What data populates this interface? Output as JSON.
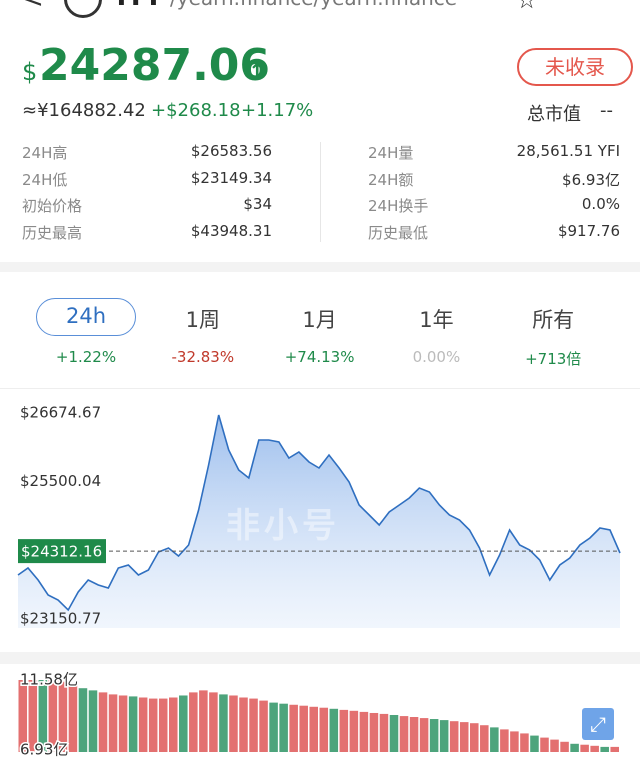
{
  "header": {
    "back": "<",
    "symbol": "YFI",
    "path": "/yearn.finance/yearn.finance"
  },
  "price": {
    "currency": "$",
    "value": "24287.06",
    "arrow": "↑",
    "badge": "未收录"
  },
  "sub": {
    "cny": "≈¥164882.42",
    "change": "+$268.18",
    "percent": "+1.17%",
    "cap_label": "总市值",
    "cap_value": "--"
  },
  "stats": {
    "left": [
      [
        "24H高",
        "$26583.56"
      ],
      [
        "24H低",
        "$23149.34"
      ],
      [
        "初始价格",
        "$34"
      ],
      [
        "历史最高",
        "$43948.31"
      ]
    ],
    "right": [
      [
        "24H量",
        "28,561.51 YFI"
      ],
      [
        "24H额",
        "$6.93亿"
      ],
      [
        "24H换手",
        "0.0%"
      ],
      [
        "历史最低",
        "$917.76"
      ]
    ]
  },
  "tabs": [
    {
      "label": "24h",
      "change": "+1.22%",
      "color": "#1f8a4a",
      "active": true
    },
    {
      "label": "1周",
      "change": "-32.83%",
      "color": "#c0392b"
    },
    {
      "label": "1月",
      "change": "+74.13%",
      "color": "#1f8a4a"
    },
    {
      "label": "1年",
      "change": "0.00%",
      "color": "#bbbbbb"
    },
    {
      "label": "所有",
      "change": "+713倍",
      "color": "#1f8a4a"
    }
  ],
  "watermark": "非小号",
  "chart_data": [
    {
      "type": "line",
      "color": "#2f6fc0",
      "ylim": [
        23150.77,
        26674.67
      ],
      "yticks": [
        {
          "value": 23150.77,
          "label": "$23150.77"
        },
        {
          "value": 25500.04,
          "label": "$25500.04"
        },
        {
          "value": 26674.67,
          "label": "$26674.67"
        }
      ],
      "current": {
        "value": 24312.16,
        "label": "$24312.16"
      },
      "values": [
        23904,
        24023,
        23818,
        23561,
        23476,
        23305,
        23613,
        23818,
        23732,
        23681,
        24023,
        24075,
        23904,
        23989,
        24297,
        24365,
        24229,
        24417,
        25015,
        25785,
        26640,
        26042,
        25700,
        25563,
        26213,
        26213,
        26179,
        25905,
        26008,
        25836,
        25734,
        25956,
        25734,
        25494,
        25101,
        24930,
        24759,
        24981,
        25101,
        25221,
        25392,
        25323,
        25101,
        24930,
        24844,
        24673,
        24365,
        23904,
        24245,
        24673,
        24417,
        24331,
        24160,
        23818,
        24075,
        24195,
        24417,
        24537,
        24708,
        24673,
        24280
      ]
    },
    {
      "type": "bar",
      "ylim": [
        6.93,
        11.58
      ],
      "yticks": [
        {
          "value": 6.93,
          "label": "6.93亿"
        },
        {
          "value": 11.58,
          "label": "11.58亿"
        }
      ],
      "values": [
        11.58,
        11.58,
        11.58,
        11.58,
        11.58,
        11.25,
        11.05,
        10.91,
        10.78,
        10.65,
        10.58,
        10.52,
        10.45,
        10.38,
        10.38,
        10.45,
        10.58,
        10.78,
        10.91,
        10.78,
        10.65,
        10.58,
        10.45,
        10.38,
        10.25,
        10.12,
        10.05,
        9.98,
        9.92,
        9.85,
        9.79,
        9.72,
        9.65,
        9.59,
        9.52,
        9.45,
        9.39,
        9.32,
        9.25,
        9.19,
        9.12,
        9.06,
        8.99,
        8.92,
        8.86,
        8.79,
        8.66,
        8.52,
        8.39,
        8.26,
        8.13,
        7.99,
        7.86,
        7.73,
        7.59,
        7.46,
        7.4,
        7.33,
        7.26,
        7.26
      ],
      "colors": [
        "#e06060",
        "#e06060",
        "#3a9a6e",
        "#e06060",
        "#e06060",
        "#e06060",
        "#3a9a6e",
        "#3a9a6e",
        "#e06060",
        "#e06060",
        "#e06060",
        "#3a9a6e",
        "#e06060",
        "#e06060",
        "#e06060",
        "#e06060",
        "#3a9a6e",
        "#e06060",
        "#e06060",
        "#e06060",
        "#3a9a6e",
        "#e06060",
        "#e06060",
        "#e06060",
        "#e06060",
        "#3a9a6e",
        "#3a9a6e",
        "#e06060",
        "#e06060",
        "#e06060",
        "#e06060",
        "#3a9a6e",
        "#e06060",
        "#e06060",
        "#e06060",
        "#e06060",
        "#e06060",
        "#3a9a6e",
        "#e06060",
        "#e06060",
        "#e06060",
        "#3a9a6e",
        "#3a9a6e",
        "#e06060",
        "#e06060",
        "#e06060",
        "#e06060",
        "#3a9a6e",
        "#e06060",
        "#e06060",
        "#e06060",
        "#3a9a6e",
        "#e06060",
        "#e06060",
        "#e06060",
        "#3a9a6e",
        "#e06060",
        "#e06060",
        "#3a9a6e",
        "#e06060"
      ]
    }
  ]
}
